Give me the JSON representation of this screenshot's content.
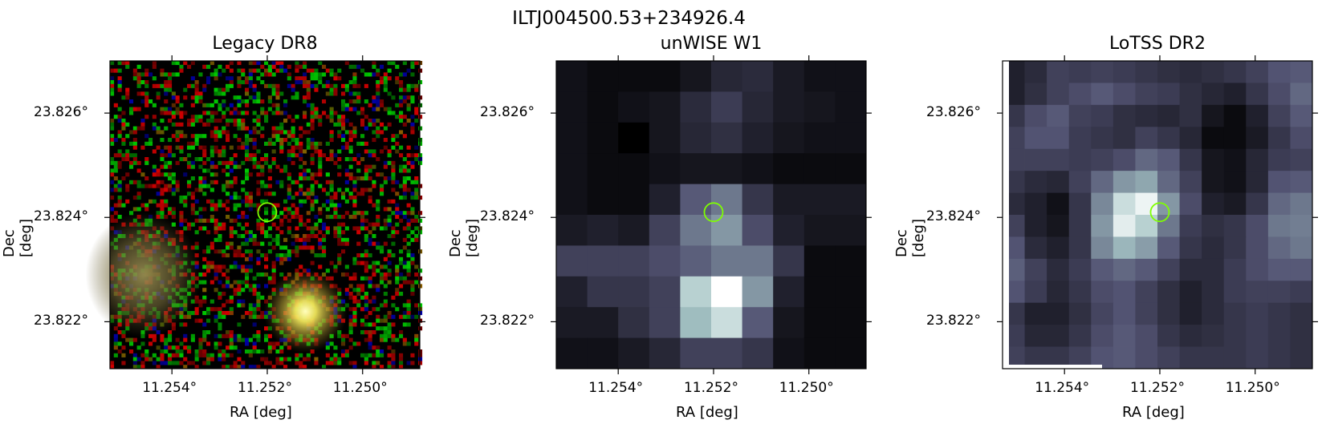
{
  "figure": {
    "title": "ILTJ004500.53+234926.4"
  },
  "chart_data": [
    {
      "type": "heatmap",
      "title": "Legacy DR8",
      "xlabel": "RA [deg]",
      "ylabel": "Dec [deg]",
      "xticks": [
        "11.254°",
        "11.252°",
        "11.250°"
      ],
      "yticks": [
        "23.826°",
        "23.824°",
        "23.822°"
      ],
      "xlim": [
        11.2553,
        11.2488
      ],
      "ylim": [
        23.8211,
        23.827
      ],
      "source_marker": {
        "ra": 11.252,
        "dec": 23.8241,
        "color": "#7fff00"
      }
    },
    {
      "type": "heatmap",
      "title": "unWISE W1",
      "xlabel": "RA [deg]",
      "ylabel": "Dec [deg]",
      "xticks": [
        "11.254°",
        "11.252°",
        "11.250°"
      ],
      "yticks": [
        "23.826°",
        "23.824°",
        "23.822°"
      ],
      "xlim": [
        11.2553,
        11.2488
      ],
      "ylim": [
        23.8211,
        23.827
      ],
      "source_marker": {
        "ra": 11.252,
        "dec": 23.8241,
        "color": "#7fff00"
      },
      "grid_values": [
        [
          0.08,
          0.05,
          0.05,
          0.05,
          0.1,
          0.18,
          0.2,
          0.12,
          0.08,
          0.08
        ],
        [
          0.08,
          0.05,
          0.08,
          0.1,
          0.2,
          0.28,
          0.18,
          0.12,
          0.1,
          0.08
        ],
        [
          0.08,
          0.05,
          0.0,
          0.1,
          0.18,
          0.22,
          0.15,
          0.1,
          0.08,
          0.08
        ],
        [
          0.08,
          0.05,
          0.05,
          0.08,
          0.1,
          0.1,
          0.08,
          0.05,
          0.05,
          0.05
        ],
        [
          0.08,
          0.05,
          0.05,
          0.15,
          0.4,
          0.5,
          0.25,
          0.12,
          0.12,
          0.12
        ],
        [
          0.12,
          0.15,
          0.12,
          0.3,
          0.5,
          0.6,
          0.35,
          0.15,
          0.1,
          0.1
        ],
        [
          0.3,
          0.3,
          0.3,
          0.35,
          0.42,
          0.5,
          0.5,
          0.25,
          0.05,
          0.05
        ],
        [
          0.15,
          0.25,
          0.25,
          0.3,
          0.8,
          1.0,
          0.6,
          0.15,
          0.05,
          0.05
        ],
        [
          0.12,
          0.12,
          0.22,
          0.3,
          0.72,
          0.85,
          0.4,
          0.1,
          0.05,
          0.05
        ],
        [
          0.08,
          0.08,
          0.12,
          0.18,
          0.3,
          0.3,
          0.25,
          0.08,
          0.05,
          0.05
        ]
      ]
    },
    {
      "type": "heatmap",
      "title": "LoTSS DR2",
      "xlabel": "RA [deg]",
      "ylabel": "Dec [deg]",
      "xticks": [
        "11.254°",
        "11.252°",
        "11.250°"
      ],
      "yticks": [
        "23.826°",
        "23.824°",
        "23.822°"
      ],
      "xlim": [
        11.2553,
        11.2488
      ],
      "ylim": [
        23.8211,
        23.827
      ],
      "source_marker": {
        "ra": 11.252,
        "dec": 23.8241,
        "color": "#7fff00"
      },
      "grid_values": [
        [
          0.15,
          0.2,
          0.3,
          0.28,
          0.3,
          0.28,
          0.25,
          0.22,
          0.2,
          0.22,
          0.25,
          0.3,
          0.38,
          0.4
        ],
        [
          0.15,
          0.22,
          0.3,
          0.35,
          0.4,
          0.35,
          0.3,
          0.28,
          0.22,
          0.18,
          0.15,
          0.25,
          0.35,
          0.45
        ],
        [
          0.25,
          0.35,
          0.4,
          0.3,
          0.28,
          0.22,
          0.2,
          0.18,
          0.22,
          0.1,
          0.05,
          0.15,
          0.3,
          0.4
        ],
        [
          0.3,
          0.38,
          0.38,
          0.28,
          0.25,
          0.22,
          0.3,
          0.25,
          0.18,
          0.05,
          0.05,
          0.12,
          0.25,
          0.35
        ],
        [
          0.3,
          0.3,
          0.3,
          0.28,
          0.3,
          0.35,
          0.45,
          0.4,
          0.25,
          0.1,
          0.08,
          0.18,
          0.28,
          0.3
        ],
        [
          0.25,
          0.2,
          0.18,
          0.3,
          0.45,
          0.6,
          0.65,
          0.45,
          0.3,
          0.1,
          0.08,
          0.18,
          0.38,
          0.4
        ],
        [
          0.2,
          0.15,
          0.08,
          0.25,
          0.55,
          0.85,
          0.95,
          0.6,
          0.35,
          0.15,
          0.12,
          0.25,
          0.45,
          0.5
        ],
        [
          0.3,
          0.15,
          0.1,
          0.25,
          0.6,
          0.92,
          0.8,
          0.5,
          0.28,
          0.22,
          0.25,
          0.35,
          0.5,
          0.52
        ],
        [
          0.38,
          0.2,
          0.15,
          0.25,
          0.55,
          0.7,
          0.62,
          0.4,
          0.25,
          0.2,
          0.25,
          0.35,
          0.45,
          0.5
        ],
        [
          0.42,
          0.3,
          0.2,
          0.28,
          0.4,
          0.45,
          0.4,
          0.3,
          0.2,
          0.2,
          0.28,
          0.35,
          0.4,
          0.4
        ],
        [
          0.38,
          0.28,
          0.18,
          0.25,
          0.35,
          0.38,
          0.3,
          0.22,
          0.15,
          0.2,
          0.28,
          0.3,
          0.3,
          0.28
        ],
        [
          0.25,
          0.15,
          0.15,
          0.22,
          0.32,
          0.38,
          0.3,
          0.22,
          0.15,
          0.2,
          0.25,
          0.28,
          0.25,
          0.22
        ],
        [
          0.28,
          0.18,
          0.18,
          0.25,
          0.35,
          0.4,
          0.35,
          0.25,
          0.2,
          0.22,
          0.25,
          0.28,
          0.25,
          0.22
        ],
        [
          0.3,
          0.25,
          0.25,
          0.3,
          0.38,
          0.4,
          0.35,
          0.3,
          0.25,
          0.25,
          0.25,
          0.28,
          0.25,
          0.22
        ]
      ]
    }
  ]
}
